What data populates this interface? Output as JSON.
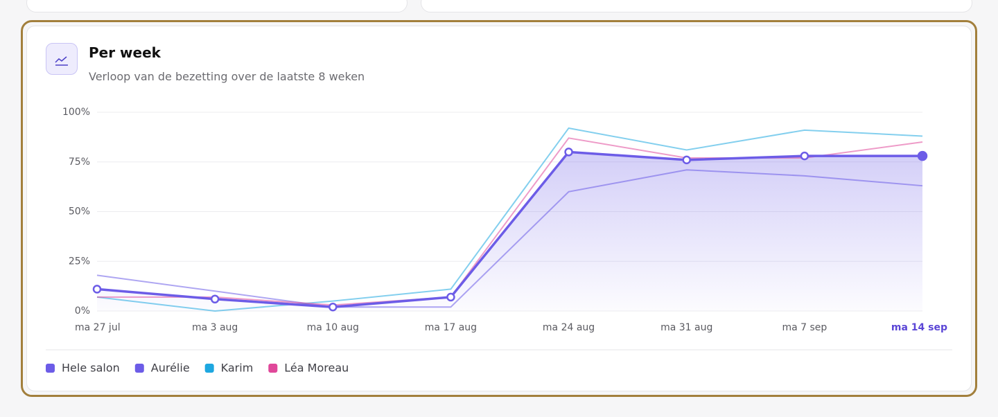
{
  "header": {
    "title": "Per week",
    "subtitle": "Verloop van de bezetting over de laatste 8 weken"
  },
  "chart_data": {
    "type": "line",
    "categories": [
      "ma 27 jul",
      "ma 3 aug",
      "ma 10 aug",
      "ma 17 aug",
      "ma 24 aug",
      "ma 31 aug",
      "ma 7 sep",
      "ma 14 sep"
    ],
    "series": [
      {
        "name": "Hele salon",
        "color": "#6c5ce7",
        "values": [
          11,
          6,
          2,
          7,
          80,
          76,
          78,
          78
        ]
      },
      {
        "name": "Aurélie",
        "color": "#6c5ce7",
        "values": [
          18,
          10,
          2,
          2,
          60,
          71,
          68,
          63
        ]
      },
      {
        "name": "Karim",
        "color": "#1ea7e0",
        "values": [
          7,
          0,
          5,
          11,
          92,
          81,
          91,
          88
        ]
      },
      {
        "name": "Léa Moreau",
        "color": "#e0489a",
        "values": [
          7,
          7,
          3,
          7,
          87,
          77,
          77,
          85
        ]
      }
    ],
    "ylim": [
      0,
      100
    ],
    "yticks": [
      {
        "value": 0,
        "label": "0%"
      },
      {
        "value": 25,
        "label": "25%"
      },
      {
        "value": 50,
        "label": "50%"
      },
      {
        "value": 75,
        "label": "75%"
      },
      {
        "value": 100,
        "label": "100%"
      }
    ],
    "grid": true
  }
}
